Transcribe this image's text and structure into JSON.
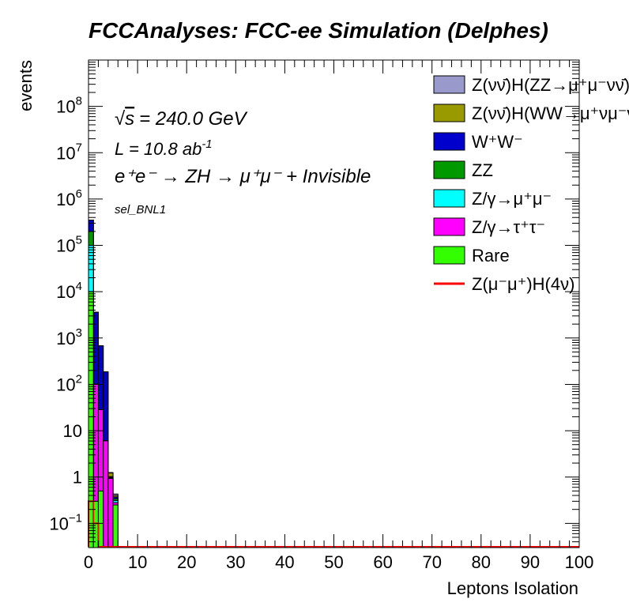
{
  "chart_data": {
    "type": "bar",
    "title": "FCCAnalyses: FCC-ee Simulation (Delphes)",
    "xlabel": "Leptons Isolation",
    "ylabel": "events",
    "xlim": [
      0,
      100
    ],
    "ylim": [
      0.03,
      1000000000
    ],
    "log_y": true,
    "stacked": true,
    "bin_width": 1,
    "x_ticks": [
      "0",
      "10",
      "20",
      "30",
      "40",
      "50",
      "60",
      "70",
      "80",
      "90",
      "100"
    ],
    "y_ticks": [
      {
        "base": "10",
        "exp": "−1",
        "value": 0.1
      },
      {
        "base": "1",
        "exp": "",
        "value": 1
      },
      {
        "base": "10",
        "exp": "",
        "value": 10
      },
      {
        "base": "10",
        "exp": "2",
        "value": 100
      },
      {
        "base": "10",
        "exp": "3",
        "value": 1000
      },
      {
        "base": "10",
        "exp": "4",
        "value": 10000
      },
      {
        "base": "10",
        "exp": "5",
        "value": 100000
      },
      {
        "base": "10",
        "exp": "6",
        "value": 1000000
      },
      {
        "base": "10",
        "exp": "7",
        "value": 10000000
      },
      {
        "base": "10",
        "exp": "8",
        "value": 100000000
      }
    ],
    "annotations": {
      "sqrt_s": "= 240.0 GeV",
      "lumi": "L = 10.8 ab",
      "lumi_exp": "-1",
      "process": "e⁺e⁻ → ZH → μ⁺μ⁻ + Invisible",
      "selection": "sel_BNL1"
    },
    "legend_position": "top-right",
    "series": [
      {
        "name": "Rare",
        "color": "#33ff00",
        "values": [
          10000,
          0.3,
          0.5,
          0.03,
          0.03,
          0.25
        ]
      },
      {
        "name": "Z/γ→τ⁺τ⁻",
        "color": "#ff00ff",
        "values": [
          40,
          100,
          28,
          6,
          0.9,
          0.03
        ]
      },
      {
        "name": "Z/γ→μ⁺μ⁻",
        "color": "#00ffff",
        "values": [
          90000,
          0.03,
          0.03,
          0.03,
          0.03,
          0.03
        ]
      },
      {
        "name": "ZZ",
        "color": "#009900",
        "values": [
          100000,
          0.3,
          0.03,
          0.03,
          0.03,
          0.03
        ]
      },
      {
        "name": "W⁺W⁻",
        "color": "#0000cc",
        "values": [
          150000,
          3500,
          650,
          180,
          0.03,
          0.03
        ]
      },
      {
        "name": "Z(νν̄)H(WW→μ⁺νμ⁻ν̄)",
        "color": "#999900",
        "values": [
          1000,
          3,
          1,
          0.5,
          0.2,
          0.03
        ]
      },
      {
        "name": "Z(νν̄)H(ZZ→μ⁺μ⁻νν̄)",
        "color": "#9999cc",
        "values": [
          10,
          0.2,
          0.05,
          0.03,
          0.03,
          0.03
        ]
      },
      {
        "name": "Z(μ⁻μ⁺)H(4ν)",
        "color": "#ff0000",
        "line": true,
        "values": [
          0.3,
          0.1,
          0.03,
          0.03,
          0.03,
          0.03
        ]
      }
    ]
  }
}
